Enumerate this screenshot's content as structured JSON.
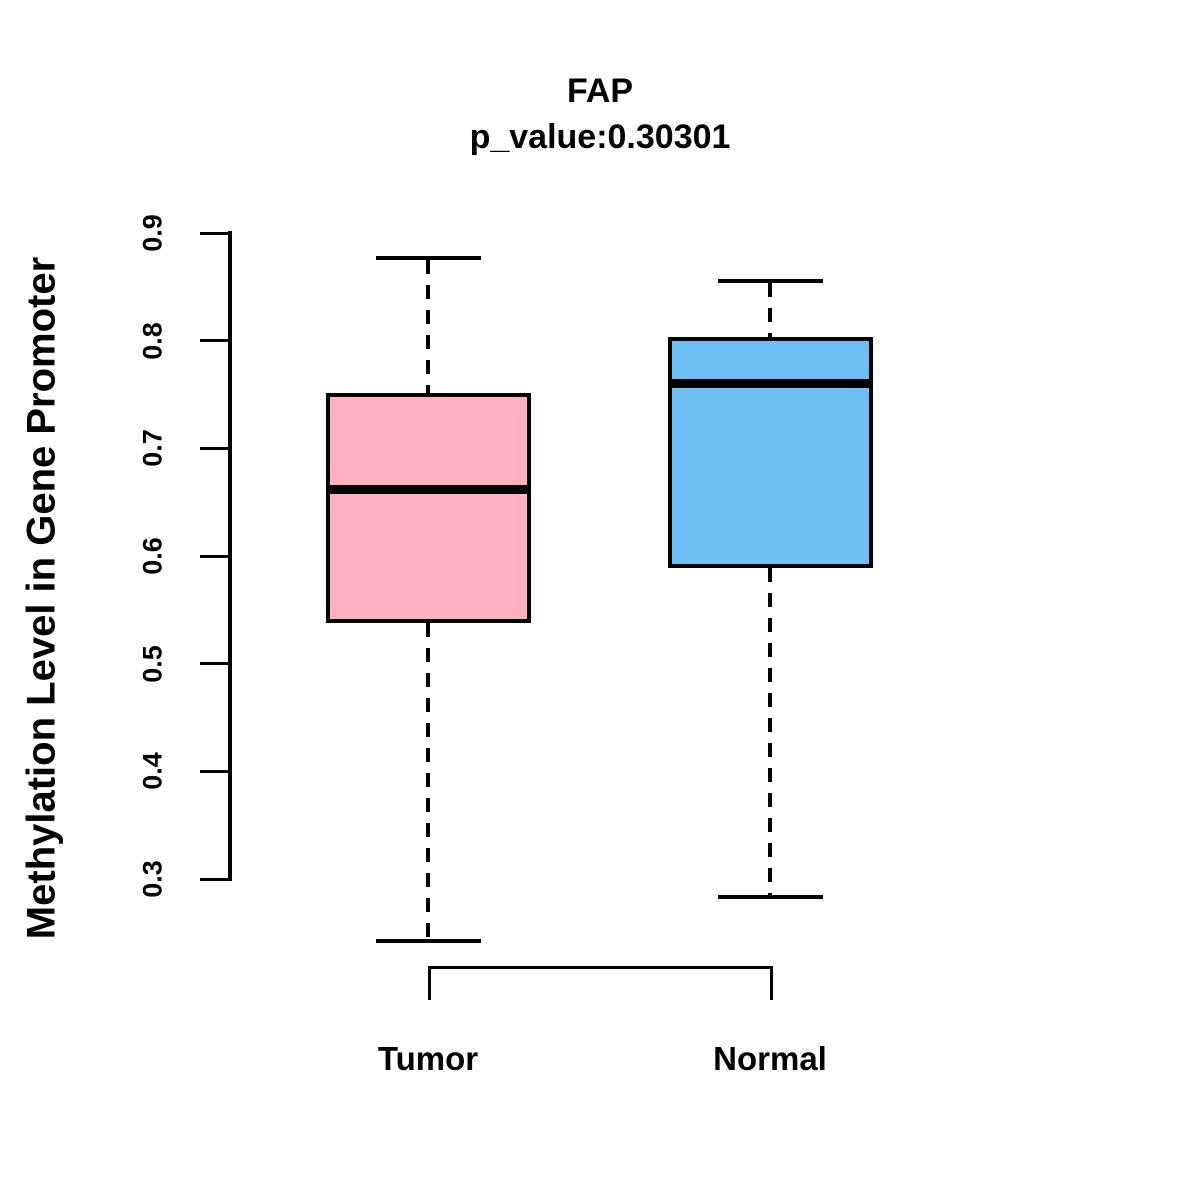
{
  "chart_data": {
    "type": "boxplot",
    "title": "FAP",
    "subtitle": "p_value:0.30301",
    "ylabel": "Methylation Level in Gene Promoter",
    "xlabel": "",
    "ytick_labels": [
      "0.3",
      "0.4",
      "0.5",
      "0.6",
      "0.7",
      "0.8",
      "0.9"
    ],
    "y_axis_range": [
      0.3,
      0.9
    ],
    "grid": "off",
    "legend": "none",
    "groups": [
      {
        "label": "Tumor",
        "color": "#FFB0C1",
        "min": 0.242,
        "q1": 0.538,
        "median": 0.662,
        "q3": 0.751,
        "max": 0.877
      },
      {
        "label": "Normal",
        "color": "#6FBFF7",
        "min": 0.283,
        "q1": 0.589,
        "median": 0.76,
        "q3": 0.803,
        "max": 0.855
      }
    ]
  },
  "colors": {
    "foreground": "#000000",
    "background": "#ffffff",
    "tumor_fill": "#FFB0C1",
    "normal_fill": "#6FBFF7"
  }
}
